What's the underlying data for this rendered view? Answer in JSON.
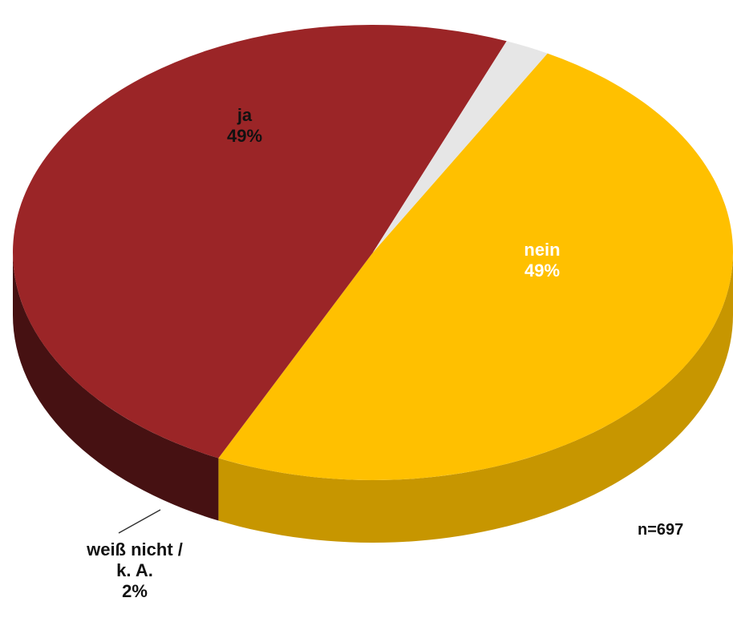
{
  "chart_data": {
    "type": "pie",
    "categories": [
      "ja",
      "nein",
      "weiß nicht / k. A."
    ],
    "values": [
      49,
      49,
      2
    ],
    "value_labels": [
      "49%",
      "49%",
      "2%"
    ],
    "colors": [
      "#FFC000",
      "#9B2527",
      "#E6E6E6"
    ],
    "annotation": "n=697"
  }
}
